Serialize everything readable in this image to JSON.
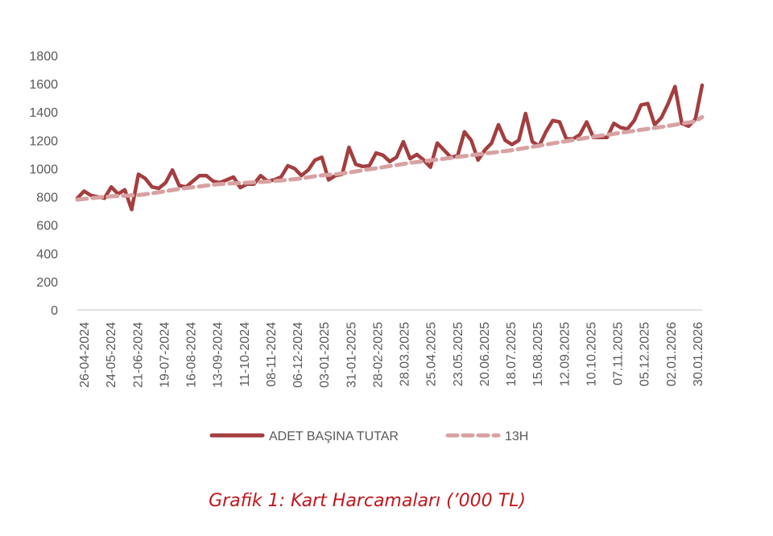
{
  "caption": "Grafik 1: Kart Harcamaları (’000 TL)",
  "colors": {
    "series_main": "#a43d3f",
    "series_trend": "#d8a1a2",
    "caption": "#c0171d",
    "axis": "#d9d9d9",
    "text": "#595959"
  },
  "chart_data": {
    "type": "line",
    "title": "",
    "xlabel": "",
    "ylabel": "",
    "ylim": [
      0,
      1800
    ],
    "yticks": [
      0,
      200,
      400,
      600,
      800,
      1000,
      1200,
      1400,
      1600,
      1800
    ],
    "grid": false,
    "legend_position": "bottom",
    "x_tick_labels": [
      "26-04-2024",
      "24-05-2024",
      "21-06-2024",
      "19-07-2024",
      "16-08-2024",
      "13-09-2024",
      "11-10-2024",
      "08-11-2024",
      "06-12-2024",
      "03-01-2025",
      "31-01-2025",
      "28-02-2025",
      "28.03.2025",
      "25.04.2025",
      "23.05.2025",
      "20.06.2025",
      "18.07.2025",
      "15.08.2025",
      "12.09.2025",
      "10.10.2025",
      "07.11.2025",
      "05.12.2025",
      "02.01.2026",
      "30.01.2026"
    ],
    "series": [
      {
        "name": "ADET BAŞINA TUTAR",
        "style": "solid",
        "values": [
          790,
          840,
          810,
          800,
          790,
          870,
          820,
          850,
          710,
          960,
          930,
          870,
          860,
          900,
          990,
          880,
          870,
          910,
          950,
          950,
          910,
          900,
          920,
          940,
          865,
          890,
          890,
          950,
          910,
          920,
          940,
          1020,
          1000,
          950,
          990,
          1060,
          1080,
          920,
          950,
          960,
          1150,
          1030,
          1015,
          1020,
          1110,
          1095,
          1050,
          1080,
          1190,
          1070,
          1100,
          1060,
          1010,
          1180,
          1130,
          1080,
          1090,
          1260,
          1200,
          1060,
          1130,
          1180,
          1310,
          1200,
          1170,
          1200,
          1390,
          1190,
          1160,
          1260,
          1340,
          1330,
          1210,
          1210,
          1240,
          1330,
          1220,
          1220,
          1220,
          1320,
          1290,
          1280,
          1340,
          1450,
          1460,
          1310,
          1360,
          1460,
          1580,
          1320,
          1300,
          1350,
          1590
        ]
      },
      {
        "name": "13H",
        "style": "dashed",
        "values": [
          780,
          785,
          790,
          795,
          800,
          803,
          806,
          808,
          810,
          812,
          818,
          825,
          832,
          840,
          848,
          855,
          862,
          868,
          874,
          880,
          885,
          890,
          893,
          896,
          898,
          900,
          902,
          905,
          908,
          912,
          916,
          920,
          925,
          930,
          938,
          946,
          952,
          956,
          960,
          965,
          972,
          980,
          988,
          995,
          1002,
          1010,
          1018,
          1025,
          1033,
          1040,
          1046,
          1052,
          1058,
          1064,
          1070,
          1076,
          1082,
          1088,
          1094,
          1100,
          1106,
          1112,
          1118,
          1124,
          1130,
          1138,
          1146,
          1154,
          1162,
          1170,
          1178,
          1186,
          1194,
          1202,
          1210,
          1218,
          1225,
          1232,
          1239,
          1246,
          1253,
          1260,
          1267,
          1274,
          1281,
          1288,
          1295,
          1302,
          1310,
          1318,
          1326,
          1334,
          1365
        ]
      }
    ]
  }
}
